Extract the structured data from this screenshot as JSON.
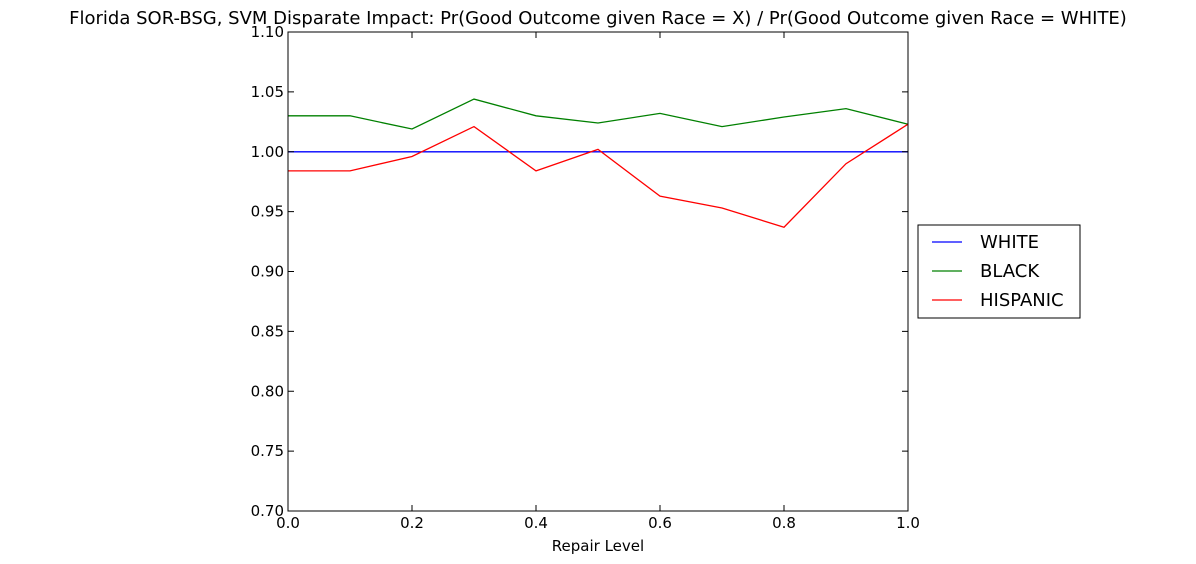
{
  "chart_data": {
    "type": "line",
    "title": "Florida SOR-BSG, SVM Disparate Impact: Pr(Good Outcome given Race = X) / Pr(Good Outcome given Race = WHITE)",
    "xlabel": "Repair Level",
    "ylabel": "",
    "xlim": [
      0.0,
      1.0
    ],
    "ylim": [
      0.7,
      1.1
    ],
    "x_ticks": [
      "0.0",
      "0.2",
      "0.4",
      "0.6",
      "0.8",
      "1.0"
    ],
    "y_ticks": [
      "0.70",
      "0.75",
      "0.80",
      "0.85",
      "0.90",
      "0.95",
      "1.00",
      "1.05",
      "1.10"
    ],
    "grid": false,
    "legend_position": "right",
    "x": [
      0.0,
      0.1,
      0.2,
      0.3,
      0.4,
      0.5,
      0.6,
      0.7,
      0.8,
      0.9,
      1.0
    ],
    "series": [
      {
        "name": "WHITE",
        "color": "#0000ff",
        "values": [
          1.0,
          1.0,
          1.0,
          1.0,
          1.0,
          1.0,
          1.0,
          1.0,
          1.0,
          1.0,
          1.0
        ]
      },
      {
        "name": "BLACK",
        "color": "#008000",
        "values": [
          1.03,
          1.03,
          1.019,
          1.044,
          1.03,
          1.024,
          1.032,
          1.021,
          1.029,
          1.036,
          1.023
        ]
      },
      {
        "name": "HISPANIC",
        "color": "#ff0000",
        "values": [
          0.984,
          0.984,
          0.996,
          1.021,
          0.984,
          1.002,
          0.963,
          0.953,
          0.937,
          0.99,
          1.023
        ]
      }
    ]
  }
}
